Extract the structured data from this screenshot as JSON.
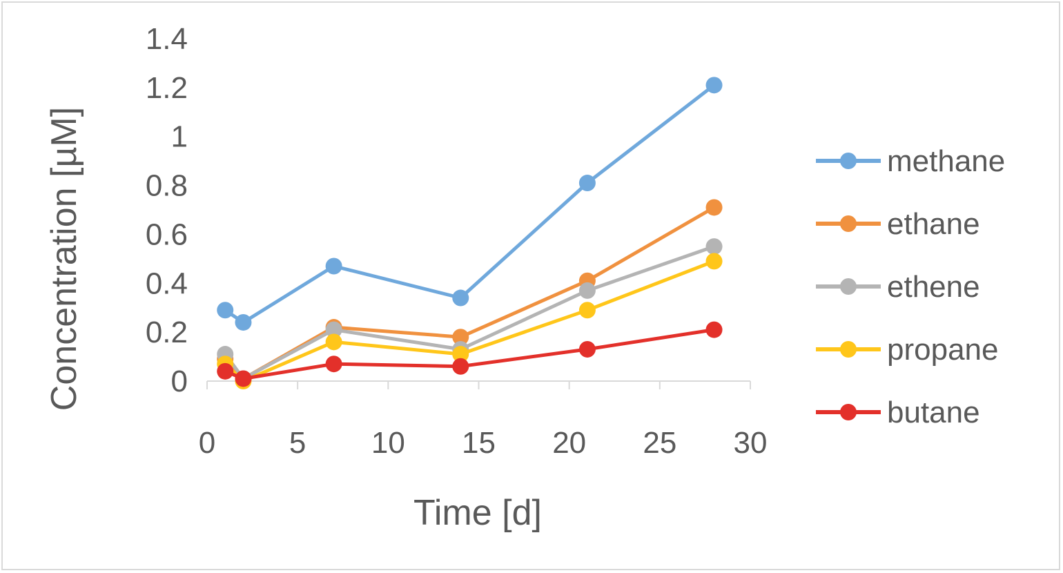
{
  "chart_data": {
    "type": "line",
    "xlabel": "Time [d]",
    "ylabel": "Concentration [µM]",
    "xlim": [
      0,
      30
    ],
    "ylim": [
      0,
      1.4
    ],
    "xticks": [
      "0",
      "5",
      "10",
      "15",
      "20",
      "25",
      "30"
    ],
    "yticks": [
      "0",
      "0.2",
      "0.4",
      "0.6",
      "0.8",
      "1",
      "1.2",
      "1.4"
    ],
    "grid": false,
    "legend": "right",
    "series": [
      {
        "name": "methane",
        "color": "#6fa8dc",
        "x": [
          1,
          2,
          7,
          14,
          21,
          28
        ],
        "values": [
          0.29,
          0.24,
          0.47,
          0.34,
          0.81,
          1.21
        ]
      },
      {
        "name": "ethane",
        "color": "#f0913f",
        "x": [
          1,
          2,
          7,
          14,
          21,
          28
        ],
        "values": [
          0.09,
          0.01,
          0.22,
          0.18,
          0.41,
          0.71
        ]
      },
      {
        "name": "ethene",
        "color": "#b4b4b4",
        "x": [
          1,
          2,
          7,
          14,
          21,
          28
        ],
        "values": [
          0.11,
          0.01,
          0.21,
          0.13,
          0.37,
          0.55
        ]
      },
      {
        "name": "propane",
        "color": "#ffc61a",
        "x": [
          1,
          2,
          7,
          14,
          21,
          28
        ],
        "values": [
          0.07,
          0.0,
          0.16,
          0.11,
          0.29,
          0.49
        ]
      },
      {
        "name": "butane",
        "color": "#e3302a",
        "x": [
          1,
          2,
          7,
          14,
          21,
          28
        ],
        "values": [
          0.04,
          0.01,
          0.07,
          0.06,
          0.13,
          0.21
        ]
      }
    ]
  }
}
